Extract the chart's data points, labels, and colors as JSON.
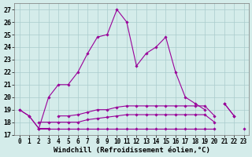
{
  "xlabel": "Windchill (Refroidissement éolien,°C)",
  "x": [
    0,
    1,
    2,
    3,
    4,
    5,
    6,
    7,
    8,
    9,
    10,
    11,
    12,
    13,
    14,
    15,
    16,
    17,
    18,
    19,
    20,
    21,
    22,
    23
  ],
  "line_main": [
    19.0,
    18.5,
    17.5,
    20.0,
    21.0,
    21.0,
    22.0,
    23.5,
    24.8,
    25.0,
    27.0,
    26.0,
    22.5,
    23.5,
    24.0,
    24.8,
    22.0,
    20.0,
    19.5,
    19.0,
    null,
    19.5,
    18.5,
    null
  ],
  "line_a": [
    19.0,
    18.5,
    17.5,
    17.5,
    null,
    null,
    null,
    null,
    null,
    null,
    null,
    null,
    null,
    null,
    null,
    null,
    null,
    null,
    null,
    null,
    null,
    19.5,
    18.5,
    null
  ],
  "line_b": [
    null,
    null,
    null,
    null,
    null,
    null,
    null,
    null,
    null,
    null,
    null,
    null,
    null,
    null,
    null,
    null,
    null,
    null,
    null,
    null,
    null,
    null,
    null,
    17.5
  ],
  "line_flat1": [
    null,
    null,
    17.5,
    17.5,
    17.5,
    17.5,
    17.5,
    17.5,
    17.5,
    17.5,
    17.5,
    17.5,
    17.5,
    17.5,
    17.5,
    17.5,
    17.5,
    17.5,
    17.5,
    17.5,
    17.5,
    null,
    null,
    17.5
  ],
  "line_flat2": [
    null,
    null,
    18.0,
    18.0,
    18.0,
    18.0,
    18.0,
    18.2,
    18.3,
    18.4,
    18.5,
    18.6,
    18.6,
    18.6,
    18.6,
    18.6,
    18.6,
    18.6,
    18.6,
    18.6,
    18.0,
    null,
    null,
    null
  ],
  "line_flat3": [
    null,
    null,
    null,
    null,
    18.5,
    18.5,
    18.6,
    18.8,
    19.0,
    19.0,
    19.2,
    19.3,
    19.3,
    19.3,
    19.3,
    19.3,
    19.3,
    19.3,
    19.3,
    19.3,
    18.5,
    null,
    null,
    null
  ],
  "color": "#990099",
  "bg_color": "#d4ecea",
  "grid_color": "#aacccc",
  "ylim_min": 17,
  "ylim_max": 27.5,
  "xlim_min": -0.5,
  "xlim_max": 23.5
}
